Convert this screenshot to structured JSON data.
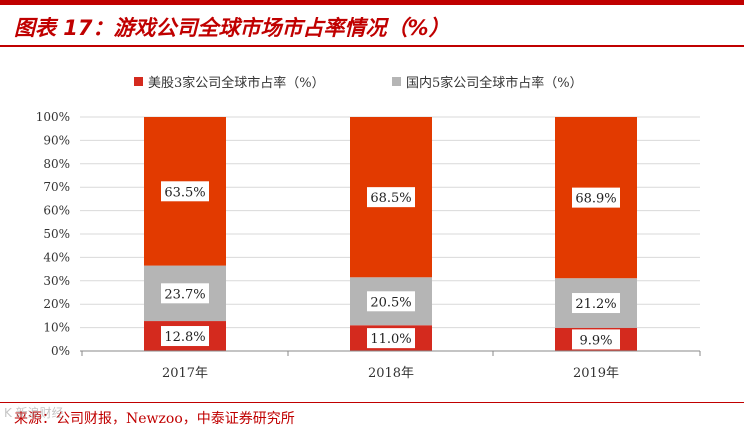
{
  "header": {
    "title": "图表 17：游戏公司全球市场市占率情况（%）"
  },
  "footer": {
    "source": "来源：公司财报，Newzoo，中泰证券研究所",
    "watermark": "K 新浪财经"
  },
  "colors": {
    "us": "#d42a1e",
    "domestic": "#b5b5b5",
    "other": "#e23a00",
    "accent": "#c00000"
  },
  "chart_data": {
    "type": "bar",
    "stacked": true,
    "percent": true,
    "categories": [
      "2017年",
      "2018年",
      "2019年"
    ],
    "series": [
      {
        "name": "美股3家公司全球市占率（%）",
        "values": [
          12.8,
          11.0,
          9.9
        ],
        "labels": [
          "12.8%",
          "11.0%",
          "9.9%"
        ]
      },
      {
        "name": "国内5家公司全球市占率（%）",
        "values": [
          23.7,
          20.5,
          21.2
        ],
        "labels": [
          "23.7%",
          "20.5%",
          "21.2%"
        ]
      },
      {
        "name": "",
        "values": [
          63.5,
          68.5,
          68.9
        ],
        "labels": [
          "63.5%",
          "68.5%",
          "68.9%"
        ]
      }
    ],
    "yticks": [
      "0%",
      "10%",
      "20%",
      "30%",
      "40%",
      "50%",
      "60%",
      "70%",
      "80%",
      "90%",
      "100%"
    ],
    "ylim": [
      0,
      100
    ],
    "grid": true,
    "legend_position": "top"
  }
}
